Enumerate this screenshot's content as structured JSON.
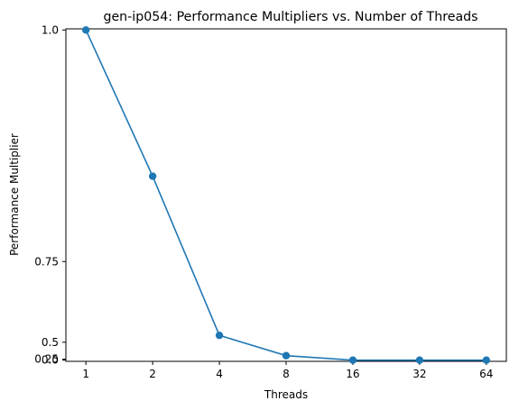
{
  "chart_data": {
    "type": "line",
    "title": "gen-ip054: Performance Multipliers vs. Number of Threads",
    "xlabel": "Threads",
    "ylabel": "Performance Multiplier",
    "x_scale": "log2",
    "y_scale": "custom-nonlinear",
    "x": [
      1,
      2,
      4,
      8,
      16,
      32,
      64
    ],
    "x_ticks": [
      "1",
      "2",
      "4",
      "8",
      "16",
      "32",
      "64"
    ],
    "y_ticks": [
      {
        "value": 0.0,
        "label": "0.0"
      },
      {
        "value": 0.25,
        "label": "0.25"
      },
      {
        "value": 0.5,
        "label": "0.5"
      },
      {
        "value": 0.75,
        "label": "0.75"
      },
      {
        "value": 1.0,
        "label": "1.0"
      }
    ],
    "ylim": [
      -0.0035,
      1.0035
    ],
    "series": [
      {
        "values": [
          1.0,
          0.87,
          0.54,
          0.36,
          0.12,
          0.0,
          0.026
        ],
        "color": "#1f77b4",
        "marker": "circle"
      }
    ],
    "grid": false,
    "legend": "none"
  }
}
